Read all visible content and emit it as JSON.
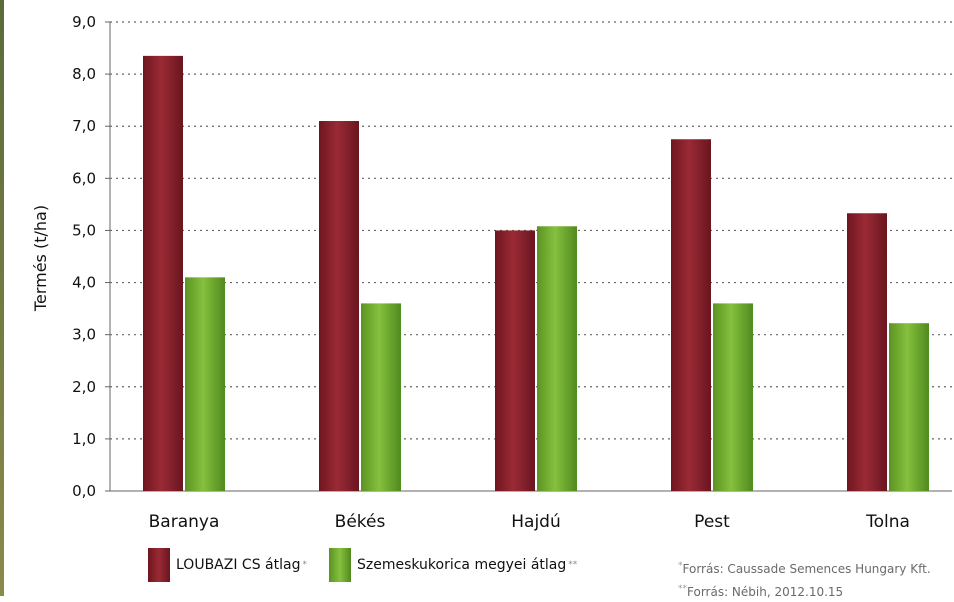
{
  "chart_data": {
    "type": "bar",
    "title": "",
    "xlabel": "",
    "ylabel": "Termés (t/ha)",
    "ylim": [
      0,
      9
    ],
    "yticks": [
      "0,0",
      "1,0",
      "2,0",
      "3,0",
      "4,0",
      "5,0",
      "6,0",
      "7,0",
      "8,0",
      "9,0"
    ],
    "categories": [
      "Baranya",
      "Békés",
      "Hajdú",
      "Pest",
      "Tolna"
    ],
    "series": [
      {
        "name": "LOUBAZI CS átlag",
        "marker": "*",
        "color": "#8a1f2a",
        "values": [
          8.35,
          7.1,
          5.0,
          6.75,
          5.33
        ]
      },
      {
        "name": "Szemeskukorica megyei átlag",
        "marker": "**",
        "color": "#6ea82e",
        "values": [
          4.1,
          3.6,
          5.08,
          3.6,
          3.22
        ]
      }
    ],
    "grid": true,
    "legend": "bottom-left"
  },
  "sources": {
    "line1_marker": "*",
    "line1": "Forrás:  Caussade Semences Hungary Kft.",
    "line2_marker": "**",
    "line2": "Forrás:  Nébih, 2012.10.15"
  }
}
